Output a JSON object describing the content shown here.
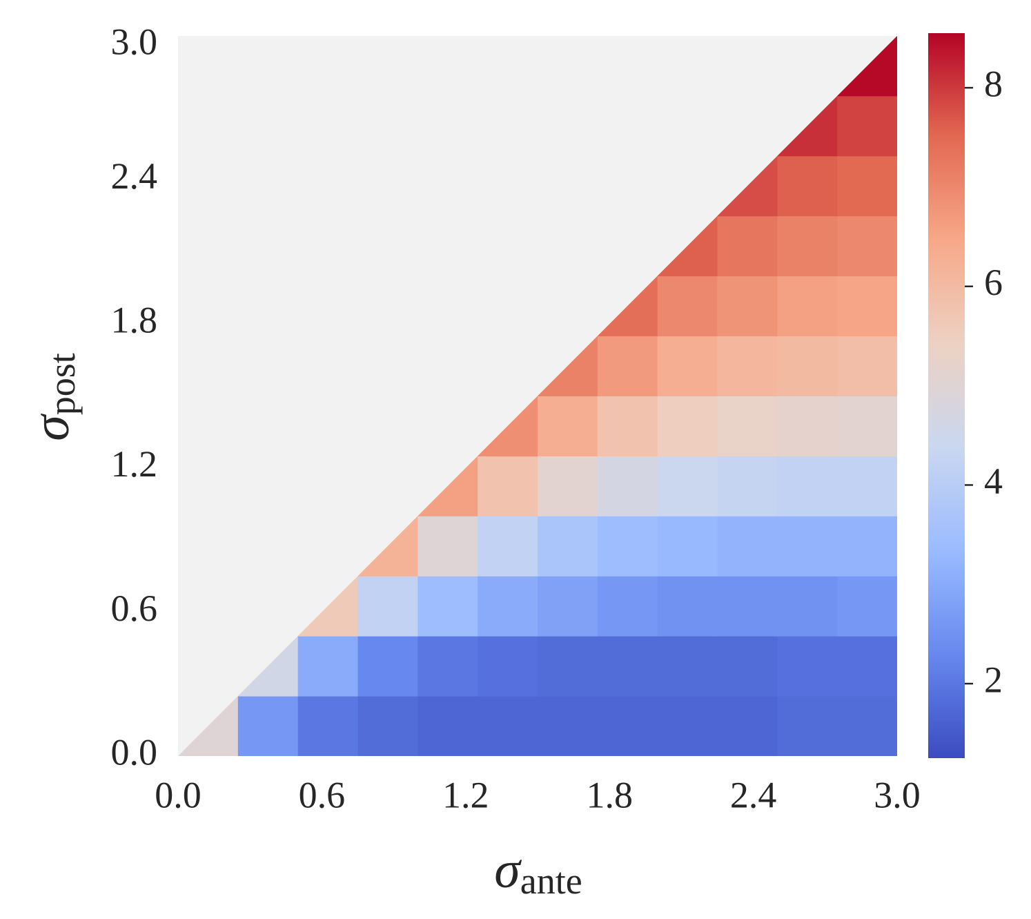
{
  "chart_data": {
    "type": "heatmap",
    "xlabel_symbol": "σ",
    "xlabel_sub": "ante",
    "ylabel_symbol": "σ",
    "ylabel_sub": "post",
    "xbins": [
      0,
      0.25,
      0.5,
      0.75,
      1,
      1.25,
      1.5,
      1.75,
      2,
      2.25,
      2.5,
      2.75,
      3
    ],
    "ybins": [
      0,
      0.25,
      0.5,
      0.75,
      1,
      1.25,
      1.5,
      1.75,
      2,
      2.25,
      2.5,
      2.75,
      3
    ],
    "values": [
      [
        5.0,
        2.6,
        2.0,
        1.8,
        1.7,
        1.7,
        1.7,
        1.7,
        1.7,
        1.7,
        1.8,
        1.8
      ],
      [
        null,
        4.6,
        3.0,
        2.3,
        2.0,
        1.9,
        1.8,
        1.8,
        1.8,
        1.8,
        1.9,
        1.9
      ],
      [
        null,
        null,
        5.6,
        4.2,
        3.4,
        3.0,
        2.8,
        2.6,
        2.5,
        2.5,
        2.5,
        2.6
      ],
      [
        null,
        null,
        null,
        6.2,
        5.0,
        4.2,
        3.7,
        3.4,
        3.3,
        3.2,
        3.2,
        3.2
      ],
      [
        null,
        null,
        null,
        null,
        6.6,
        5.8,
        5.1,
        4.7,
        4.4,
        4.3,
        4.2,
        4.2
      ],
      [
        null,
        null,
        null,
        null,
        null,
        6.9,
        6.3,
        5.8,
        5.5,
        5.3,
        5.2,
        5.1
      ],
      [
        null,
        null,
        null,
        null,
        null,
        null,
        7.1,
        6.7,
        6.3,
        6.1,
        6.0,
        5.9
      ],
      [
        null,
        null,
        null,
        null,
        null,
        null,
        null,
        7.4,
        7.0,
        6.8,
        6.6,
        6.5
      ],
      [
        null,
        null,
        null,
        null,
        null,
        null,
        null,
        null,
        7.6,
        7.3,
        7.1,
        7.0
      ],
      [
        null,
        null,
        null,
        null,
        null,
        null,
        null,
        null,
        null,
        7.8,
        7.6,
        7.5
      ],
      [
        null,
        null,
        null,
        null,
        null,
        null,
        null,
        null,
        null,
        null,
        8.1,
        7.9
      ],
      [
        null,
        null,
        null,
        null,
        null,
        null,
        null,
        null,
        null,
        null,
        null,
        8.5
      ]
    ],
    "xlim": [
      0,
      3
    ],
    "ylim": [
      0,
      3
    ],
    "xticks": [
      {
        "value": 0,
        "label": "0.0"
      },
      0.6,
      1.2,
      1.8,
      2.4,
      {
        "value": 3,
        "label": "3.0"
      }
    ],
    "yticks": [
      {
        "value": 0,
        "label": "0.0"
      },
      0.6,
      1.2,
      1.8,
      2.4,
      {
        "value": 3,
        "label": "3.0"
      }
    ],
    "clim": [
      1.25,
      8.55
    ],
    "cticks": [
      2,
      4,
      6,
      8
    ],
    "colormap": [
      "#3b4cc0",
      "#6788ee",
      "#9abbff",
      "#c9d7f0",
      "#edd1c2",
      "#f7a889",
      "#e26952",
      "#b40426"
    ],
    "background": "#f2f2f2"
  }
}
